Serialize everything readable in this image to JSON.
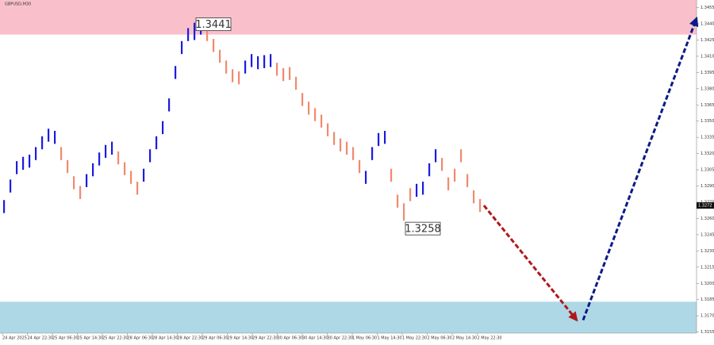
{
  "chart_data": {
    "type": "ohlc",
    "title": "GBPUSD,M30",
    "ylim": [
      1.3154,
      1.3462
    ],
    "yticks": [
      1.3155,
      {
        "value": 1.317,
        "label": "1.3170"
      },
      1.3185,
      {
        "value": 1.32,
        "label": "1.3200"
      },
      1.3215,
      {
        "value": 1.323,
        "label": "1.3230"
      },
      1.3245,
      {
        "value": 1.326,
        "label": "1.3260"
      },
      1.3275,
      {
        "value": 1.329,
        "label": "1.3290"
      },
      1.3305,
      {
        "value": 1.332,
        "label": "1.3320"
      },
      1.3335,
      {
        "value": 1.335,
        "label": "1.3350"
      },
      1.3365,
      {
        "value": 1.338,
        "label": "1.3380"
      },
      1.3395,
      {
        "value": 1.341,
        "label": "1.3410"
      },
      1.3425,
      {
        "value": 1.344,
        "label": "1.3440"
      },
      1.3455
    ],
    "categories": [
      "24 Apr 2025",
      "24 Apr 22:30",
      "25 Apr 06:30",
      "25 Apr 14:30",
      "25 Apr 22:30",
      "28 Apr 06:30",
      "28 Apr 14:30",
      "28 Apr 22:30",
      "29 Apr 06:30",
      "29 Apr 14:30",
      "29 Apr 22:30",
      "30 Apr 06:30",
      "30 Apr 14:30",
      "30 Apr 22:30",
      "1 May 06:30",
      "1 May 14:30",
      "1 May 22:30",
      "2 May 06:30",
      "2 May 14:30",
      "2 May 22:30"
    ],
    "high": [
      1.3277,
      1.3296,
      1.3313,
      1.3317,
      1.3319,
      1.3326,
      1.3336,
      1.3343,
      1.3341,
      1.3326,
      1.3314,
      1.3299,
      1.329,
      1.3301,
      1.3311,
      1.3321,
      1.3328,
      1.3331,
      1.3322,
      1.3312,
      1.3304,
      1.3294,
      1.3306,
      1.3324,
      1.3336,
      1.335,
      1.3371,
      1.3401,
      1.3424,
      1.3436,
      1.3441,
      1.344,
      1.3436,
      1.3426,
      1.3416,
      1.3406,
      1.3398,
      1.3396,
      1.3406,
      1.3412,
      1.341,
      1.3411,
      1.3412,
      1.3404,
      1.3399,
      1.34,
      1.3391,
      1.3376,
      1.3368,
      1.3362,
      1.3356,
      1.3348,
      1.334,
      1.3334,
      1.3331,
      1.3326,
      1.3314,
      1.3304,
      1.3326,
      1.3339,
      1.3341,
      1.3306,
      1.3282,
      1.3274,
      1.3288,
      1.3292,
      1.3294,
      1.3311,
      1.3324,
      1.3316,
      1.3298,
      1.3306,
      1.3324,
      1.3301,
      1.3286,
      1.3278
    ],
    "low": [
      1.3265,
      1.3284,
      1.3301,
      1.3305,
      1.3307,
      1.3314,
      1.3324,
      1.3331,
      1.3329,
      1.3314,
      1.3302,
      1.3287,
      1.3278,
      1.3289,
      1.3299,
      1.3309,
      1.3316,
      1.3319,
      1.331,
      1.33,
      1.3292,
      1.3282,
      1.3294,
      1.3312,
      1.3324,
      1.3338,
      1.3359,
      1.3389,
      1.3412,
      1.3424,
      1.3425,
      1.343,
      1.3424,
      1.3414,
      1.3404,
      1.3394,
      1.3386,
      1.3384,
      1.3394,
      1.34,
      1.3398,
      1.3399,
      1.34,
      1.3392,
      1.3387,
      1.3388,
      1.3379,
      1.3364,
      1.3356,
      1.335,
      1.3344,
      1.3336,
      1.3328,
      1.3322,
      1.3319,
      1.3314,
      1.3302,
      1.3292,
      1.3314,
      1.3327,
      1.3329,
      1.3294,
      1.327,
      1.3258,
      1.3276,
      1.328,
      1.3282,
      1.3299,
      1.3312,
      1.3304,
      1.3286,
      1.3294,
      1.3312,
      1.3289,
      1.3274,
      1.3266
    ],
    "colors": [
      "#1c1ce0",
      "#1c1ce0",
      "#1c1ce0",
      "#1c1ce0",
      "#1c1ce0",
      "#1c1ce0",
      "#1c1ce0",
      "#1c1ce0",
      "#1c1ce0",
      "#f08a70",
      "#f08a70",
      "#f08a70",
      "#f08a70",
      "#1c1ce0",
      "#1c1ce0",
      "#1c1ce0",
      "#1c1ce0",
      "#1c1ce0",
      "#f08a70",
      "#f08a70",
      "#f08a70",
      "#f08a70",
      "#1c1ce0",
      "#1c1ce0",
      "#1c1ce0",
      "#1c1ce0",
      "#1c1ce0",
      "#1c1ce0",
      "#1c1ce0",
      "#1c1ce0",
      "#1c1ce0",
      "#1c1ce0",
      "#f08a70",
      "#f08a70",
      "#f08a70",
      "#f08a70",
      "#f08a70",
      "#f08a70",
      "#1c1ce0",
      "#1c1ce0",
      "#1c1ce0",
      "#1c1ce0",
      "#1c1ce0",
      "#f08a70",
      "#f08a70",
      "#f08a70",
      "#f08a70",
      "#f08a70",
      "#f08a70",
      "#f08a70",
      "#f08a70",
      "#f08a70",
      "#f08a70",
      "#f08a70",
      "#f08a70",
      "#f08a70",
      "#f08a70",
      "#1c1ce0",
      "#1c1ce0",
      "#1c1ce0",
      "#1c1ce0",
      "#f08a70",
      "#f08a70",
      "#f08a70",
      "#f08a70",
      "#1c1ce0",
      "#1c1ce0",
      "#1c1ce0",
      "#1c1ce0",
      "#f08a70",
      "#f08a70",
      "#f08a70",
      "#f08a70",
      "#f08a70",
      "#f08a70",
      "#f08a70"
    ],
    "zones": [
      {
        "from": 1.343,
        "to": 1.3462,
        "color": "#f9c0cb"
      },
      {
        "from": 1.3154,
        "to": 1.3183,
        "color": "#aed8e6"
      }
    ],
    "annotations": [
      {
        "label": "1.3441",
        "value": 1.3441
      },
      {
        "label": "1.3258",
        "value": 1.3258
      }
    ],
    "current_price": {
      "value": 1.3272,
      "label": "1.3272"
    },
    "forecast": [
      {
        "values": [
          1.3272,
          1.3166
        ],
        "color": "#b01818"
      },
      {
        "values": [
          1.3166,
          1.3445
        ],
        "color": "#0b1a86"
      }
    ]
  }
}
